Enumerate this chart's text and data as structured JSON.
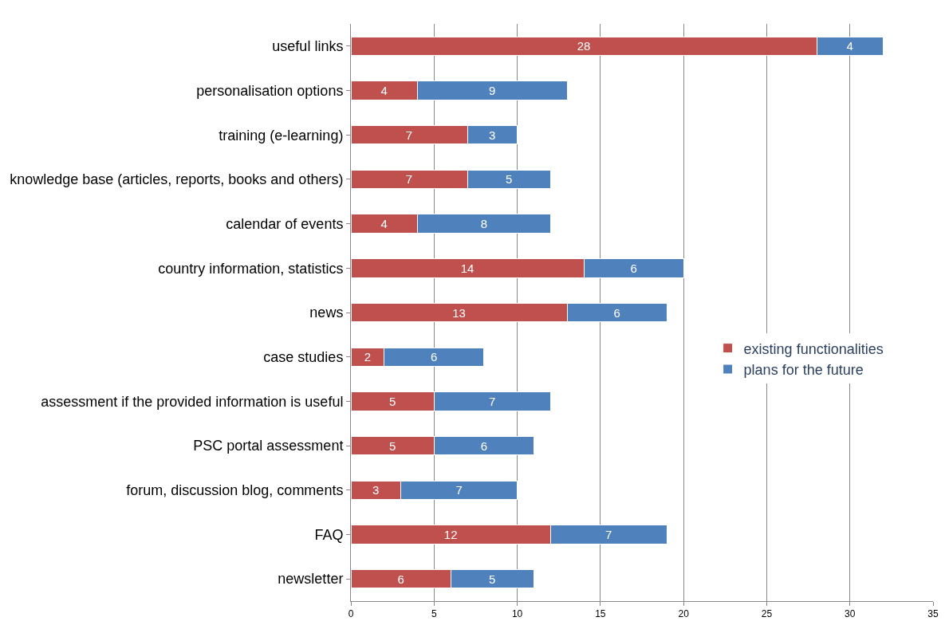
{
  "chart_data": {
    "type": "bar",
    "orientation": "horizontal",
    "stacked": true,
    "data_labels": true,
    "grid": "x",
    "legend": "right",
    "categories": [
      "useful links",
      "personalisation options",
      "training (e-learning)",
      "knowledge base (articles, reports, books and others)",
      "calendar of events",
      "country information, statistics",
      "news",
      "case studies",
      "assessment if the provided information is useful",
      "PSC portal assessment",
      "forum, discussion blog, comments",
      "FAQ",
      "newsletter"
    ],
    "series": [
      {
        "name": "existing functionalities",
        "color": "#c0504d",
        "values": [
          28,
          4,
          7,
          7,
          4,
          14,
          13,
          2,
          5,
          5,
          3,
          12,
          6
        ]
      },
      {
        "name": "plans for the future",
        "color": "#4f81bd",
        "values": [
          4,
          9,
          3,
          5,
          8,
          6,
          6,
          6,
          7,
          6,
          7,
          7,
          5
        ]
      }
    ],
    "xlim": [
      0,
      35
    ],
    "xticks": [
      0,
      5,
      10,
      15,
      20,
      25,
      30,
      35
    ]
  }
}
